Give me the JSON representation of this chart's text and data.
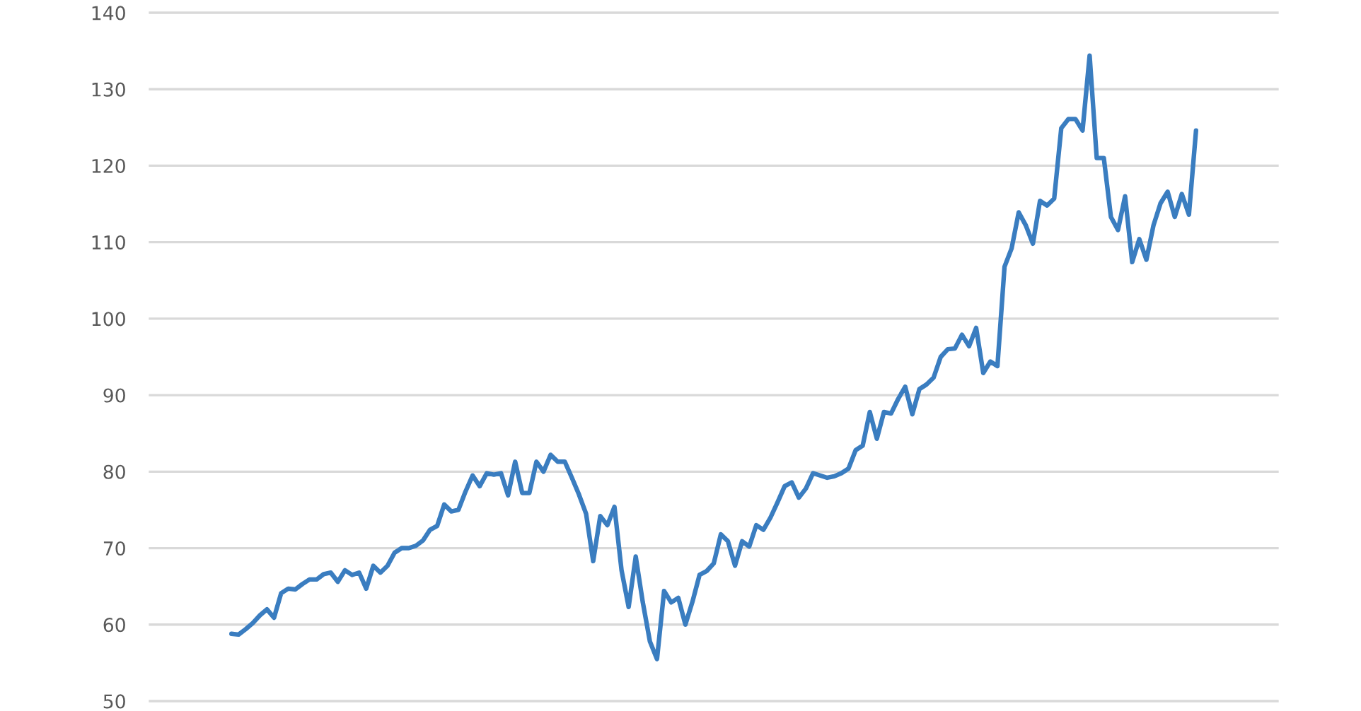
{
  "chart_data": {
    "type": "line",
    "categories": [
      null,
      null,
      null,
      null,
      null,
      null,
      null,
      null,
      null,
      null,
      null,
      null,
      null,
      null,
      null,
      null,
      null,
      null,
      null,
      null,
      null,
      null,
      null,
      null,
      null,
      null,
      null,
      null,
      null,
      null,
      null,
      null,
      null,
      null,
      null,
      null,
      null,
      null,
      null,
      null,
      null,
      null,
      null,
      null,
      null,
      null,
      null,
      null,
      null,
      null,
      null,
      null,
      null,
      null,
      null,
      null,
      null,
      null,
      null,
      null,
      null,
      null,
      null,
      null,
      null,
      null,
      null,
      null,
      null,
      null,
      null,
      null,
      null,
      null,
      null,
      null,
      null,
      null,
      null,
      null,
      null,
      null,
      null,
      null,
      null,
      null,
      null,
      null,
      null,
      null,
      null,
      null,
      null,
      null,
      null,
      null,
      null,
      null,
      null,
      null,
      null,
      null,
      null,
      null,
      null,
      null,
      null,
      null,
      null,
      null,
      null,
      null,
      null,
      null,
      null,
      null,
      null,
      null,
      null,
      null,
      null,
      null,
      null,
      null,
      null,
      null,
      null,
      null,
      null,
      null,
      null,
      null,
      null,
      null,
      null,
      null,
      null
    ],
    "series": [
      {
        "color": "#3a7dc0",
        "values": [
          58.8,
          58.7,
          59.4,
          60.2,
          61.2,
          62.0,
          60.9,
          64.1,
          64.7,
          64.6,
          65.3,
          65.9,
          65.9,
          66.6,
          66.8,
          65.6,
          67.1,
          66.5,
          66.8,
          64.7,
          67.7,
          66.8,
          67.7,
          69.4,
          70.0,
          70.0,
          70.3,
          71.0,
          72.4,
          72.9,
          75.7,
          74.8,
          75.0,
          77.4,
          79.5,
          78.1,
          79.8,
          79.6,
          79.8,
          76.9,
          81.3,
          77.2,
          77.2,
          81.3,
          80.0,
          82.2,
          81.3,
          81.3,
          79.2,
          77.0,
          74.5,
          68.3,
          74.2,
          73.0,
          75.4,
          67.1,
          62.3,
          68.9,
          62.9,
          57.8,
          55.5,
          64.4,
          62.9,
          63.5,
          60.0,
          63.0,
          66.5,
          67.0,
          68.0,
          71.8,
          70.9,
          67.7,
          70.9,
          70.2,
          73.0,
          72.4,
          74.0,
          76.0,
          78.1,
          78.6,
          76.6,
          77.8,
          79.8,
          79.5,
          79.2,
          79.4,
          79.8,
          80.4,
          82.8,
          83.4,
          87.8,
          84.3,
          87.8,
          87.6,
          89.5,
          91.1,
          87.5,
          90.8,
          91.4,
          92.3,
          95.0,
          96.0,
          96.1,
          97.9,
          96.4,
          98.8,
          92.9,
          94.4,
          93.8,
          106.8,
          109.2,
          113.9,
          112.2,
          109.8,
          115.4,
          114.8,
          115.7,
          124.9,
          126.1,
          126.1,
          124.6,
          134.4,
          121.0,
          121.0,
          113.3,
          111.6,
          116.0,
          107.4,
          110.4,
          107.7,
          112.2,
          115.1,
          116.6,
          113.3,
          116.3,
          113.6,
          124.6
        ]
      }
    ],
    "ylim": [
      50,
      140
    ],
    "yticks": [
      50,
      60,
      70,
      80,
      90,
      100,
      110,
      120,
      130,
      140
    ],
    "grid": "y",
    "tick_labels": "y",
    "line_style": "solid"
  }
}
